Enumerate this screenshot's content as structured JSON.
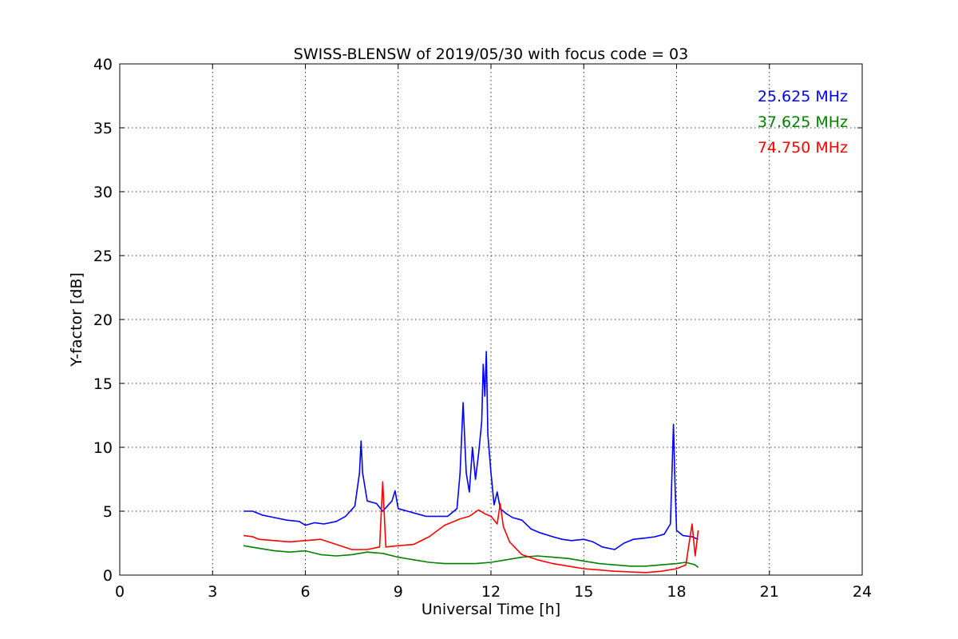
{
  "chart_data": {
    "type": "line",
    "title": "SWISS-BLENSW of 2019/05/30 with focus code = 03",
    "xlabel": "Universal Time [h]",
    "ylabel": "Y-factor [dB]",
    "xlim": [
      0,
      24
    ],
    "ylim": [
      0,
      40
    ],
    "xticks": [
      0,
      3,
      6,
      9,
      12,
      15,
      18,
      21,
      24
    ],
    "yticks": [
      0,
      5,
      10,
      15,
      20,
      25,
      30,
      35,
      40
    ],
    "xtick_labels": [
      "0",
      "3",
      "6",
      "9",
      "12",
      "15",
      "18",
      "21",
      "24"
    ],
    "ytick_labels": [
      "0",
      "5",
      "10",
      "15",
      "20",
      "25",
      "30",
      "35",
      "40"
    ],
    "grid": true,
    "legend_position": "top-right",
    "series": [
      {
        "name": "25.625 MHz",
        "color": "#0000ff",
        "x": [
          4.0,
          4.3,
          4.6,
          5.0,
          5.4,
          5.8,
          6.0,
          6.3,
          6.6,
          7.0,
          7.3,
          7.6,
          7.75,
          7.8,
          7.85,
          8.0,
          8.3,
          8.5,
          8.8,
          8.9,
          9.0,
          9.3,
          9.6,
          9.9,
          10.0,
          10.3,
          10.6,
          10.9,
          11.0,
          11.1,
          11.2,
          11.3,
          11.4,
          11.5,
          11.6,
          11.7,
          11.75,
          11.8,
          11.85,
          11.9,
          12.0,
          12.1,
          12.2,
          12.3,
          12.4,
          12.5,
          12.7,
          13.0,
          13.3,
          13.6,
          14.0,
          14.3,
          14.6,
          15.0,
          15.3,
          15.6,
          16.0,
          16.3,
          16.6,
          17.0,
          17.3,
          17.6,
          17.8,
          17.9,
          17.95,
          18.0,
          18.2,
          18.5,
          18.7
        ],
        "y": [
          5.0,
          5.0,
          4.7,
          4.5,
          4.3,
          4.2,
          3.9,
          4.1,
          4.0,
          4.2,
          4.6,
          5.4,
          8.0,
          10.5,
          8.0,
          5.8,
          5.6,
          5.0,
          5.8,
          6.6,
          5.2,
          5.0,
          4.8,
          4.6,
          4.6,
          4.6,
          4.6,
          5.2,
          8.0,
          13.5,
          8.0,
          6.5,
          10.0,
          7.5,
          9.5,
          12.0,
          16.5,
          14.0,
          17.5,
          11.0,
          8.0,
          5.5,
          6.5,
          5.2,
          5.0,
          4.8,
          4.5,
          4.3,
          3.6,
          3.3,
          3.0,
          2.8,
          2.7,
          2.8,
          2.6,
          2.2,
          2.0,
          2.5,
          2.8,
          2.9,
          3.0,
          3.2,
          4.0,
          11.8,
          7.0,
          3.5,
          3.1,
          3.0,
          2.8
        ]
      },
      {
        "name": "37.625 MHz",
        "color": "#008000",
        "x": [
          4.0,
          4.5,
          5.0,
          5.5,
          6.0,
          6.5,
          7.0,
          7.5,
          8.0,
          8.5,
          9.0,
          9.5,
          10.0,
          10.5,
          11.0,
          11.5,
          12.0,
          12.5,
          13.0,
          13.5,
          14.0,
          14.5,
          15.0,
          15.5,
          16.0,
          16.5,
          17.0,
          17.5,
          18.0,
          18.3,
          18.6,
          18.7
        ],
        "y": [
          2.3,
          2.1,
          1.9,
          1.8,
          1.9,
          1.6,
          1.5,
          1.6,
          1.8,
          1.7,
          1.4,
          1.2,
          1.0,
          0.9,
          0.9,
          0.9,
          1.0,
          1.2,
          1.4,
          1.5,
          1.4,
          1.3,
          1.1,
          0.9,
          0.8,
          0.7,
          0.7,
          0.8,
          0.9,
          1.0,
          0.8,
          0.6
        ]
      },
      {
        "name": "74.750 MHz",
        "color": "#ff0000",
        "x": [
          4.0,
          4.3,
          4.5,
          5.0,
          5.5,
          6.0,
          6.5,
          7.0,
          7.5,
          8.0,
          8.4,
          8.5,
          8.6,
          9.0,
          9.5,
          10.0,
          10.5,
          11.0,
          11.3,
          11.6,
          11.8,
          12.0,
          12.2,
          12.3,
          12.4,
          12.6,
          13.0,
          13.5,
          14.0,
          14.5,
          15.0,
          15.5,
          16.0,
          16.5,
          17.0,
          17.5,
          18.0,
          18.3,
          18.5,
          18.6,
          18.7
        ],
        "y": [
          3.1,
          3.0,
          2.8,
          2.7,
          2.6,
          2.7,
          2.8,
          2.4,
          2.0,
          2.0,
          2.2,
          7.3,
          2.2,
          2.3,
          2.4,
          3.0,
          3.9,
          4.4,
          4.6,
          5.1,
          4.8,
          4.6,
          4.0,
          5.6,
          3.8,
          2.6,
          1.6,
          1.2,
          0.9,
          0.7,
          0.5,
          0.4,
          0.3,
          0.25,
          0.2,
          0.3,
          0.5,
          0.8,
          4.0,
          1.5,
          3.5
        ]
      }
    ]
  }
}
